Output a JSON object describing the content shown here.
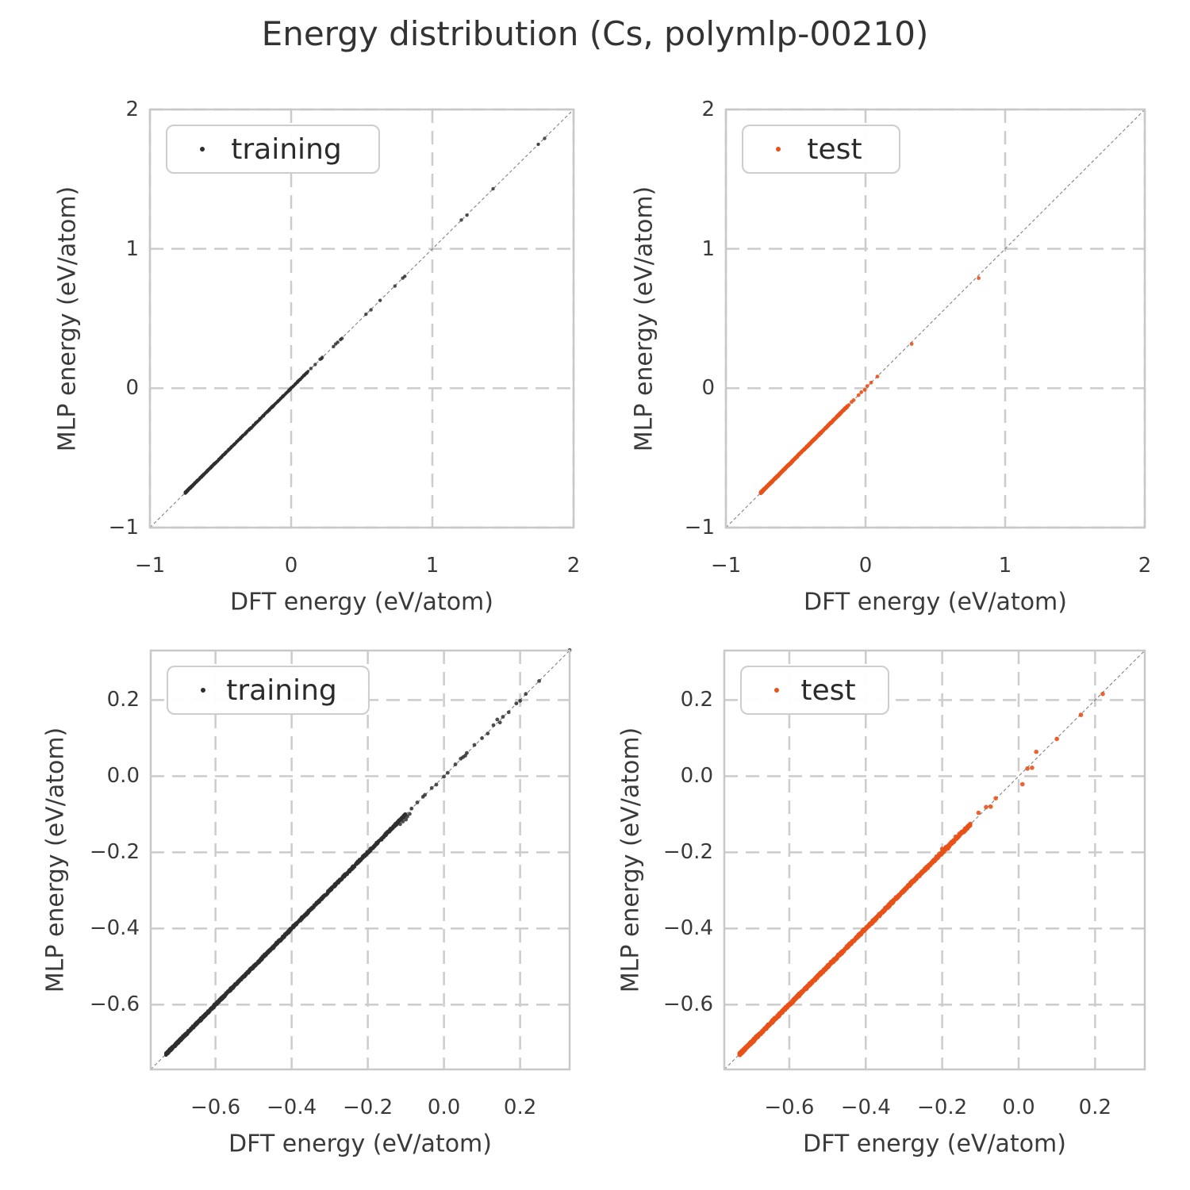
{
  "title": "Energy distribution (Cs, polymlp-00210)",
  "axes": {
    "xlabel": "DFT energy (eV/atom)",
    "ylabel": "MLP energy (eV/atom)"
  },
  "colors": {
    "training": "#2f2f2f",
    "test": "#e8521a",
    "grid": "#cccccc",
    "spine": "#c8c8c8",
    "identity_line": "#777777",
    "text": "#3a3a3a"
  },
  "chart_data": [
    {
      "id": "top-left",
      "type": "scatter",
      "series": "training",
      "color": "#2f2f2f",
      "xlabel": "DFT energy (eV/atom)",
      "ylabel": "MLP energy (eV/atom)",
      "xlim": [
        -1,
        2
      ],
      "ylim": [
        -1,
        2
      ],
      "xticks": [
        -1,
        0,
        1,
        2
      ],
      "yticks": [
        -1,
        0,
        1,
        2
      ],
      "tick_decimals": 0,
      "grid": true,
      "identity_line": true,
      "legend": {
        "label": "training",
        "position": "upper-left"
      },
      "dense_band": {
        "along": "y=x",
        "from": -0.75,
        "to": 0.12,
        "count": 1400,
        "skew": 2.4,
        "jitter": 0.006,
        "marker_r": 1.7
      },
      "marker_r": 2.2,
      "points": [
        [
          0.14,
          0.142
        ],
        [
          0.17,
          0.17
        ],
        [
          0.205,
          0.208
        ],
        [
          0.215,
          0.213
        ],
        [
          0.22,
          0.221
        ],
        [
          0.3,
          0.299
        ],
        [
          0.315,
          0.317
        ],
        [
          0.33,
          0.33
        ],
        [
          0.35,
          0.349
        ],
        [
          0.36,
          0.357
        ],
        [
          0.53,
          0.531
        ],
        [
          0.565,
          0.562
        ],
        [
          0.63,
          0.63
        ],
        [
          0.735,
          0.733
        ],
        [
          0.79,
          0.79
        ],
        [
          0.805,
          0.803
        ],
        [
          1.205,
          1.207
        ],
        [
          1.245,
          1.242
        ],
        [
          1.43,
          1.431
        ],
        [
          1.75,
          1.75
        ],
        [
          1.795,
          1.792
        ]
      ]
    },
    {
      "id": "top-right",
      "type": "scatter",
      "series": "test",
      "color": "#e8521a",
      "xlabel": "DFT energy (eV/atom)",
      "ylabel": "MLP energy (eV/atom)",
      "xlim": [
        -1,
        2
      ],
      "ylim": [
        -1,
        2
      ],
      "xticks": [
        -1,
        0,
        1,
        2
      ],
      "yticks": [
        -1,
        0,
        1,
        2
      ],
      "tick_decimals": 0,
      "grid": true,
      "identity_line": true,
      "legend": {
        "label": "test",
        "position": "upper-left"
      },
      "dense_band": {
        "along": "y=x",
        "from": -0.75,
        "to": -0.13,
        "count": 1100,
        "skew": 1.9,
        "jitter": 0.006,
        "marker_r": 2.2
      },
      "marker_r": 2.4,
      "points": [
        [
          -0.145,
          -0.143
        ],
        [
          -0.14,
          -0.144
        ],
        [
          -0.132,
          -0.13
        ],
        [
          -0.12,
          -0.121
        ],
        [
          -0.1,
          -0.099
        ],
        [
          -0.085,
          -0.086
        ],
        [
          -0.05,
          -0.05
        ],
        [
          -0.03,
          -0.028
        ],
        [
          -0.005,
          -0.012
        ],
        [
          0.012,
          0.015
        ],
        [
          0.04,
          0.04
        ],
        [
          0.085,
          0.084
        ],
        [
          0.33,
          0.318
        ],
        [
          0.81,
          0.79
        ]
      ]
    },
    {
      "id": "bottom-left",
      "type": "scatter",
      "series": "training",
      "color": "#2f2f2f",
      "xlabel": "DFT energy (eV/atom)",
      "ylabel": "MLP energy (eV/atom)",
      "xlim": [
        -0.77,
        0.33
      ],
      "ylim": [
        -0.77,
        0.33
      ],
      "xticks": [
        -0.6,
        -0.4,
        -0.2,
        0.0,
        0.2
      ],
      "yticks": [
        -0.6,
        -0.4,
        -0.2,
        0.0,
        0.2
      ],
      "tick_decimals": 1,
      "grid": true,
      "identity_line": true,
      "legend": {
        "label": "training",
        "position": "upper-left"
      },
      "dense_band": {
        "along": "y=x",
        "from": -0.73,
        "to": -0.1,
        "count": 1700,
        "skew": 1.35,
        "jitter": 0.004,
        "marker_r": 2.2
      },
      "marker_r": 2.4,
      "points": [
        [
          -0.115,
          -0.126
        ],
        [
          -0.108,
          -0.119
        ],
        [
          -0.1,
          -0.114
        ],
        [
          -0.096,
          -0.106
        ],
        [
          -0.09,
          -0.099
        ],
        [
          -0.085,
          -0.085
        ],
        [
          -0.07,
          -0.069
        ],
        [
          -0.055,
          -0.054
        ],
        [
          -0.05,
          -0.049
        ],
        [
          -0.032,
          -0.031
        ],
        [
          -0.02,
          -0.022
        ],
        [
          0.0,
          -0.001
        ],
        [
          0.01,
          0.009
        ],
        [
          0.03,
          0.031
        ],
        [
          0.044,
          0.046
        ],
        [
          0.05,
          0.05
        ],
        [
          0.056,
          0.054
        ],
        [
          0.06,
          0.061
        ],
        [
          0.08,
          0.082
        ],
        [
          0.1,
          0.1
        ],
        [
          0.115,
          0.112
        ],
        [
          0.13,
          0.134
        ],
        [
          0.14,
          0.149
        ],
        [
          0.147,
          0.141
        ],
        [
          0.155,
          0.156
        ],
        [
          0.17,
          0.168
        ],
        [
          0.19,
          0.191
        ],
        [
          0.2,
          0.198
        ],
        [
          0.215,
          0.216
        ],
        [
          0.25,
          0.25
        ],
        [
          0.33,
          0.331
        ]
      ]
    },
    {
      "id": "bottom-right",
      "type": "scatter",
      "series": "test",
      "color": "#e8521a",
      "xlabel": "DFT energy (eV/atom)",
      "ylabel": "MLP energy (eV/atom)",
      "xlim": [
        -0.77,
        0.33
      ],
      "ylim": [
        -0.77,
        0.33
      ],
      "xticks": [
        -0.6,
        -0.4,
        -0.2,
        0.0,
        0.2
      ],
      "yticks": [
        -0.6,
        -0.4,
        -0.2,
        0.0,
        0.2
      ],
      "tick_decimals": 1,
      "grid": true,
      "identity_line": true,
      "legend": {
        "label": "test",
        "position": "upper-left"
      },
      "dense_band": {
        "along": "y=x",
        "from": -0.73,
        "to": -0.125,
        "count": 1500,
        "skew": 1.45,
        "jitter": 0.004,
        "marker_r": 2.6
      },
      "marker_r": 2.8,
      "points": [
        [
          -0.22,
          -0.223
        ],
        [
          -0.215,
          -0.211
        ],
        [
          -0.208,
          -0.204
        ],
        [
          -0.2,
          -0.191
        ],
        [
          -0.196,
          -0.199
        ],
        [
          -0.19,
          -0.186
        ],
        [
          -0.185,
          -0.19
        ],
        [
          -0.179,
          -0.177
        ],
        [
          -0.165,
          -0.159
        ],
        [
          -0.155,
          -0.151
        ],
        [
          -0.149,
          -0.146
        ],
        [
          -0.144,
          -0.147
        ],
        [
          -0.139,
          -0.141
        ],
        [
          -0.134,
          -0.137
        ],
        [
          -0.105,
          -0.096
        ],
        [
          -0.085,
          -0.081
        ],
        [
          -0.073,
          -0.08
        ],
        [
          -0.06,
          -0.058
        ],
        [
          0.01,
          -0.021
        ],
        [
          0.023,
          0.02
        ],
        [
          0.035,
          0.022
        ],
        [
          0.046,
          0.064
        ],
        [
          0.1,
          0.098
        ],
        [
          0.163,
          0.161
        ],
        [
          0.22,
          0.216
        ]
      ]
    }
  ]
}
